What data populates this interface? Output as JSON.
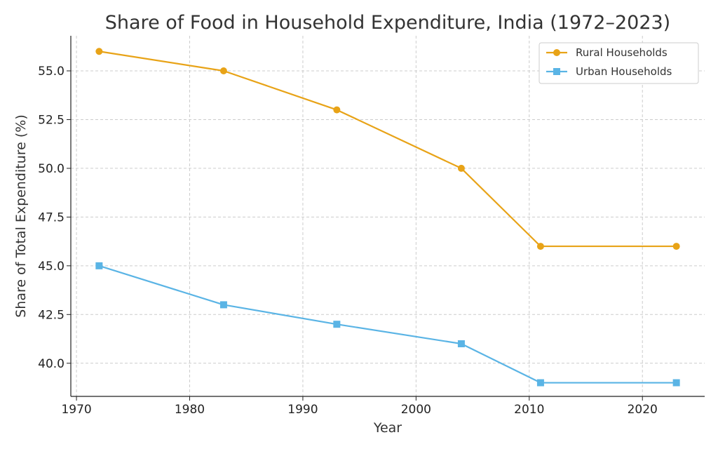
{
  "chart_data": {
    "type": "line",
    "title": "Share of Food in Household Expenditure, India (1972–2023)",
    "xlabel": "Year",
    "ylabel": "Share of Total Expenditure (%)",
    "xlim": [
      1969.5,
      2025.5
    ],
    "ylim": [
      38.3,
      56.8
    ],
    "xticks": [
      1970,
      1980,
      1990,
      2000,
      2010,
      2020
    ],
    "yticks": [
      40.0,
      42.5,
      45.0,
      47.5,
      50.0,
      52.5,
      55.0
    ],
    "ytick_labels": [
      "40.0",
      "42.5",
      "45.0",
      "47.5",
      "50.0",
      "52.5",
      "55.0"
    ],
    "grid": true,
    "legend_position": "top-right",
    "x": [
      1972,
      1983,
      1993,
      2004,
      2011,
      2023
    ],
    "series": [
      {
        "name": "Rural Households",
        "values": [
          56,
          55,
          53,
          50,
          46,
          46
        ],
        "color": "#E8A317",
        "marker": "circle"
      },
      {
        "name": "Urban Households",
        "values": [
          45,
          43,
          42,
          41,
          39,
          39
        ],
        "color": "#5AB4E5",
        "marker": "square"
      }
    ]
  }
}
